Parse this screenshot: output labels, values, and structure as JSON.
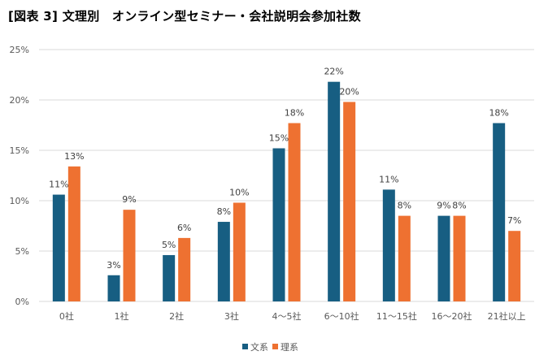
{
  "title": "[図表 3] 文理別　オンライン型セミナー・会社説明会参加社数",
  "chart_data": {
    "type": "bar",
    "title": "[図表 3] 文理別　オンライン型セミナー・会社説明会参加社数",
    "categories": [
      "0社",
      "1社",
      "2社",
      "3社",
      "4～5社",
      "6～10社",
      "11～15社",
      "16～20社",
      "21社以上"
    ],
    "series": [
      {
        "name": "文系",
        "color": "#175e82",
        "values": [
          10.6,
          2.6,
          4.6,
          7.9,
          15.2,
          21.8,
          11.1,
          8.5,
          17.7
        ],
        "labels": [
          "11%",
          "3%",
          "5%",
          "8%",
          "15%",
          "22%",
          "11%",
          "9%",
          "18%"
        ]
      },
      {
        "name": "理系",
        "color": "#ee7131",
        "values": [
          13.4,
          9.1,
          6.3,
          9.8,
          17.7,
          19.8,
          8.5,
          8.5,
          7.0
        ],
        "labels": [
          "13%",
          "9%",
          "6%",
          "10%",
          "18%",
          "20%",
          "8%",
          "8%",
          "7%"
        ]
      }
    ],
    "yticks": [
      "0%",
      "5%",
      "10%",
      "15%",
      "20%",
      "25%"
    ],
    "ylim": [
      0,
      25
    ],
    "xlabel": "",
    "ylabel": "",
    "grid": true,
    "legend": "bottom"
  }
}
